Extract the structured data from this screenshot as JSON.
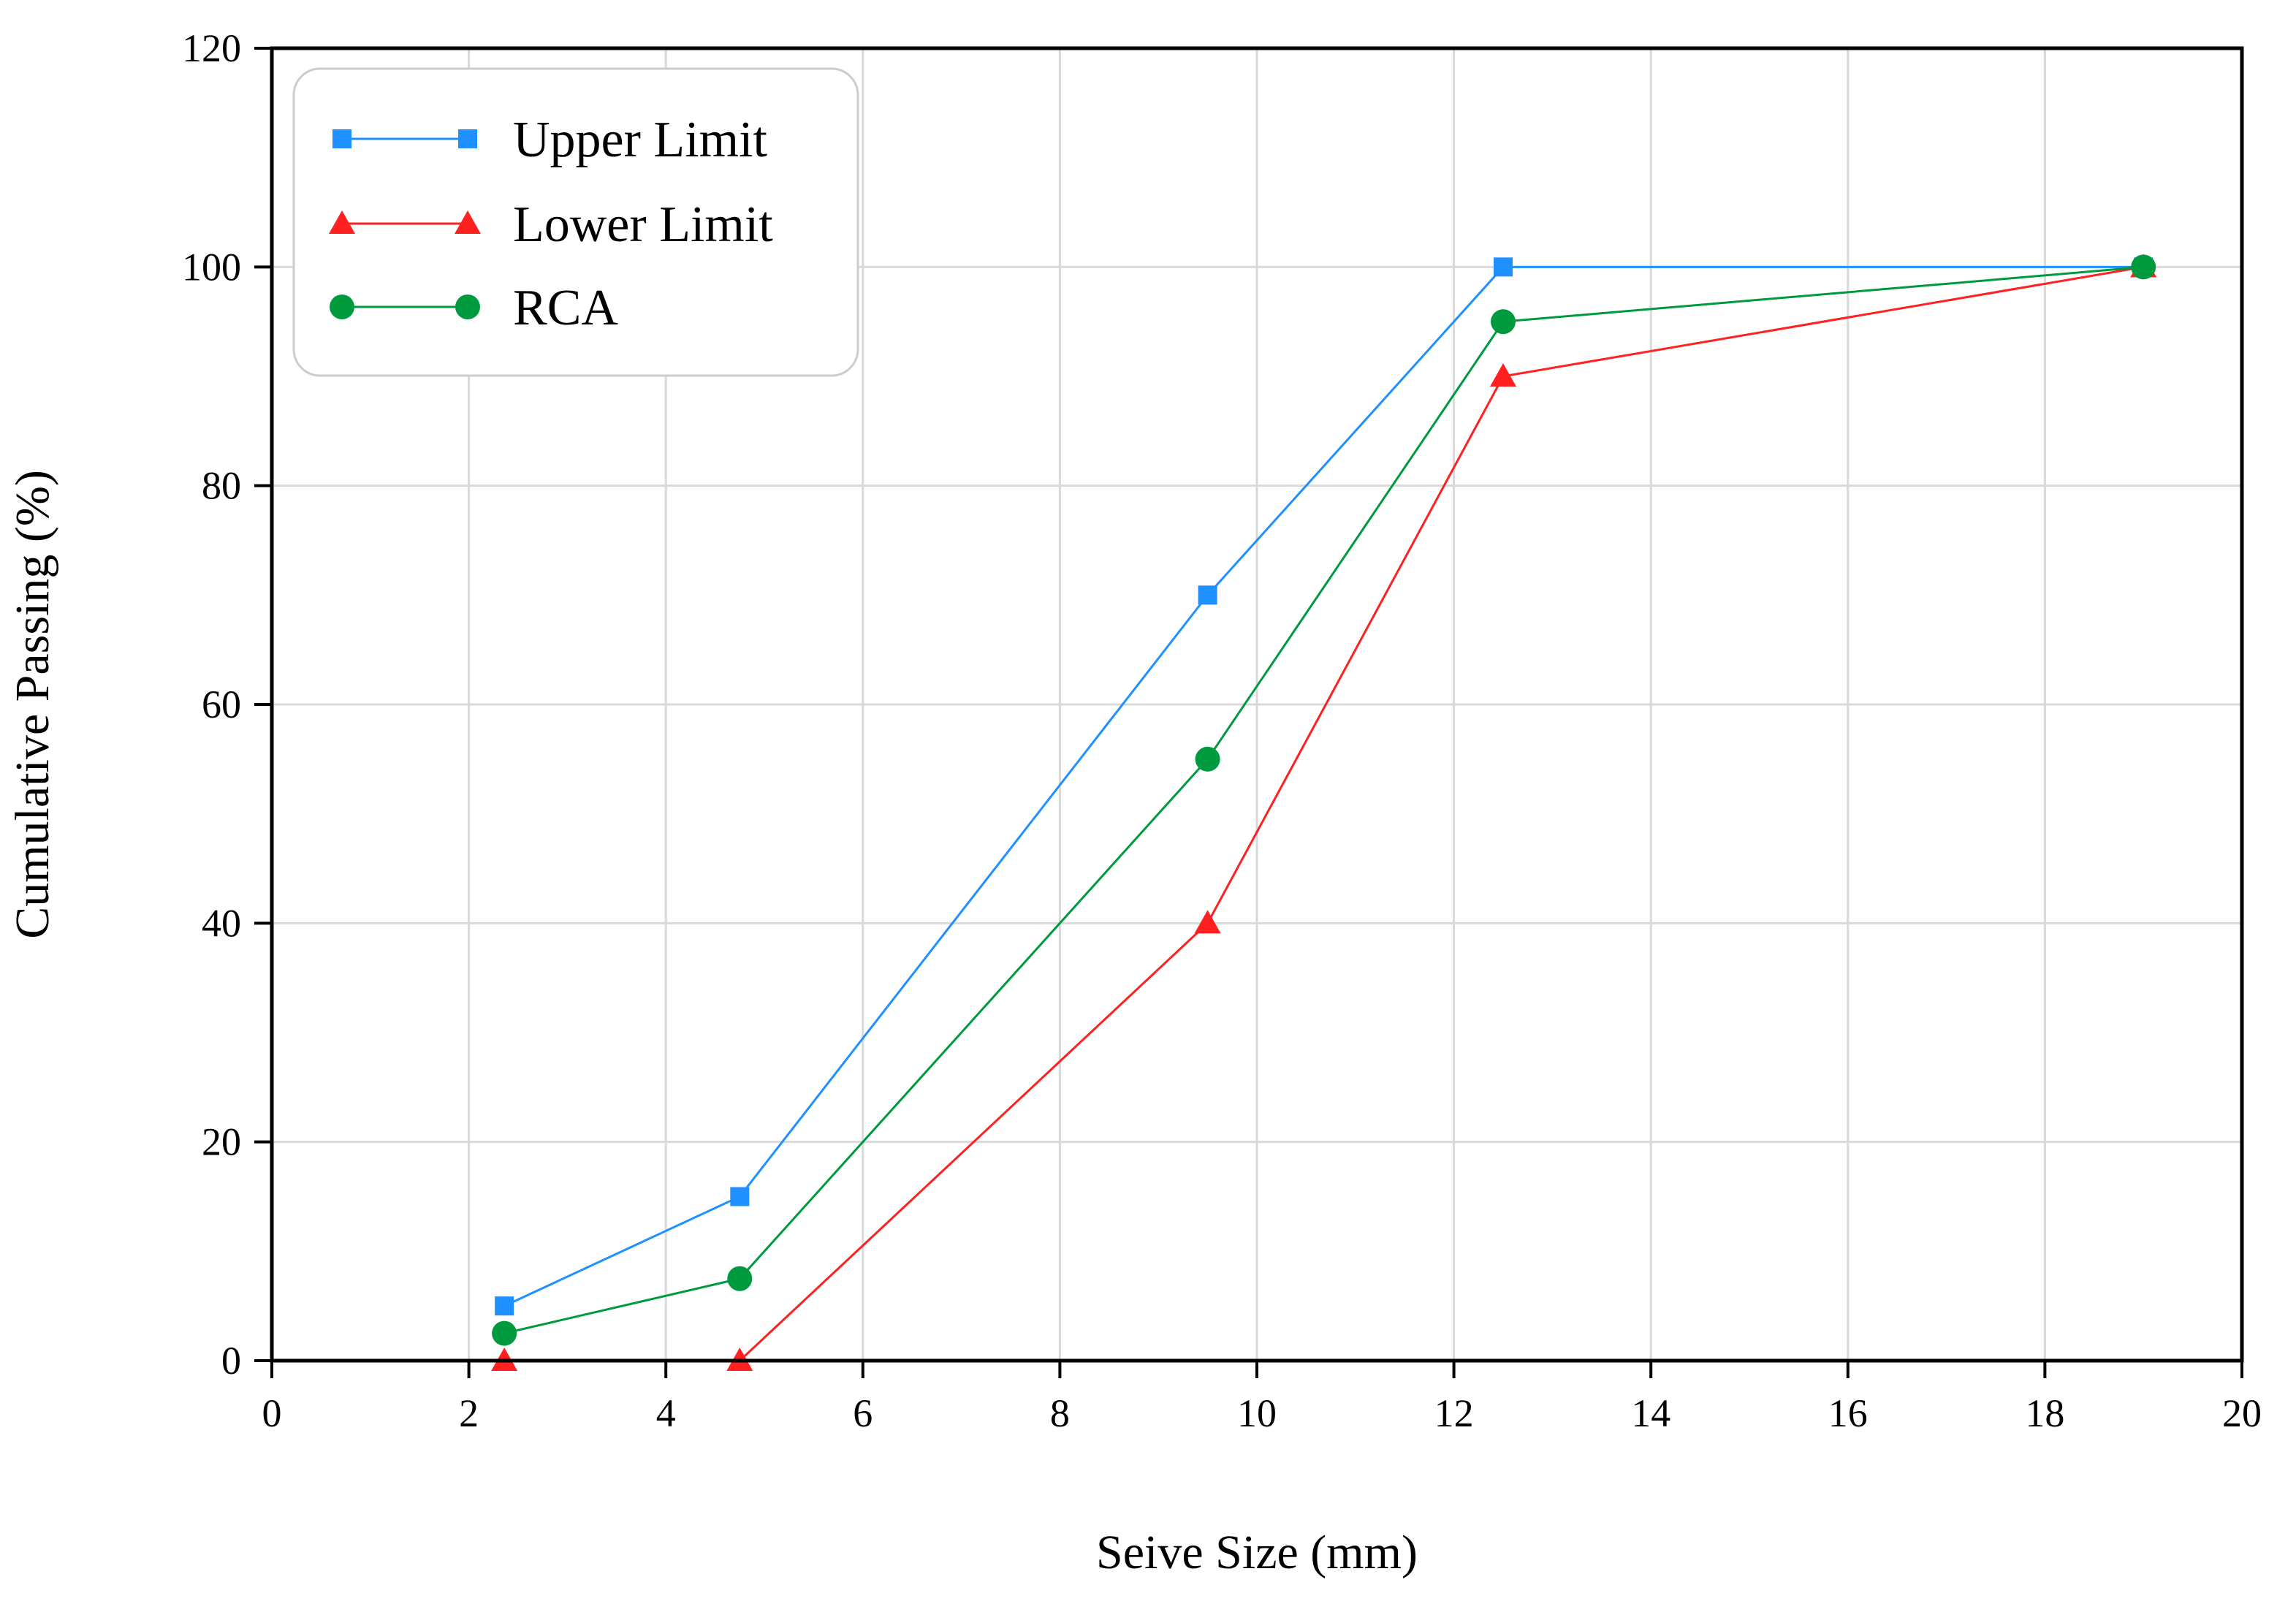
{
  "chart_data": {
    "type": "line",
    "title": "",
    "xlabel": "Seive Size (mm)",
    "ylabel": "Cumulative Passing (%)",
    "xlim": [
      0,
      20
    ],
    "ylim": [
      0,
      120
    ],
    "xticks": [
      0,
      2,
      4,
      6,
      8,
      10,
      12,
      14,
      16,
      18,
      20
    ],
    "yticks": [
      0,
      20,
      40,
      60,
      80,
      100,
      120
    ],
    "grid": true,
    "legend_position": "top-left",
    "series": [
      {
        "name": "Upper Limit",
        "color": "#1e90ff",
        "marker": "square",
        "x": [
          2.36,
          4.75,
          9.5,
          12.5,
          19
        ],
        "values": [
          5,
          15,
          70,
          100,
          100
        ]
      },
      {
        "name": "Lower Limit",
        "color": "#ff2020",
        "marker": "triangle",
        "x": [
          2.36,
          4.75,
          9.5,
          12.5,
          19
        ],
        "values": [
          0,
          0,
          40,
          90,
          100
        ]
      },
      {
        "name": "RCA",
        "color": "#009a3e",
        "marker": "circle",
        "x": [
          2.36,
          4.75,
          9.5,
          12.5,
          19
        ],
        "values": [
          2.5,
          7.5,
          55,
          95,
          100
        ]
      }
    ]
  }
}
